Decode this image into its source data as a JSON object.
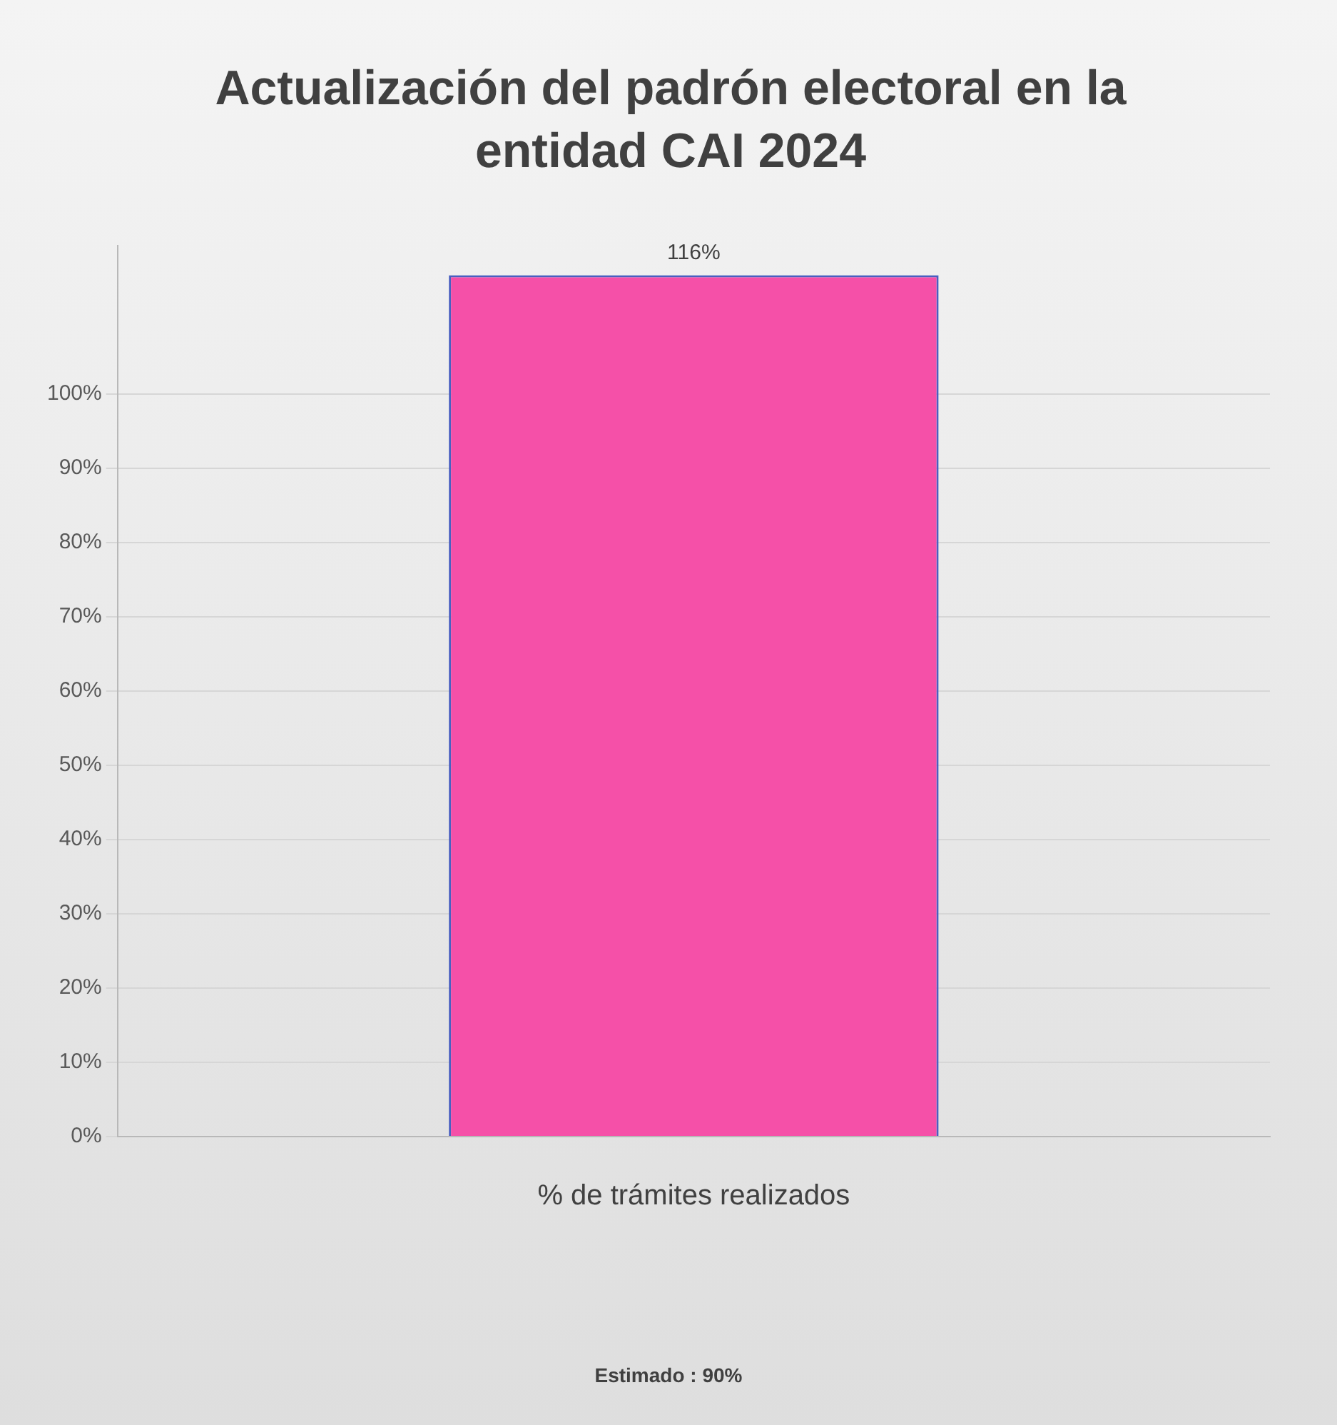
{
  "chart_data": {
    "type": "bar",
    "title": "Actualización del padrón electoral en la entidad CAI 2024",
    "categories": [
      "% de trámites realizados"
    ],
    "values": [
      116
    ],
    "color": "#f550a8",
    "ylim": [
      0,
      120
    ],
    "yticks": [
      {
        "value": 0,
        "label": "0%"
      },
      {
        "value": 10,
        "label": "10%"
      },
      {
        "value": 20,
        "label": "20%"
      },
      {
        "value": 30,
        "label": "30%"
      },
      {
        "value": 40,
        "label": "40%"
      },
      {
        "value": 50,
        "label": "50%"
      },
      {
        "value": 60,
        "label": "60%"
      },
      {
        "value": 70,
        "label": "70%"
      },
      {
        "value": 80,
        "label": "80%"
      },
      {
        "value": 90,
        "label": "90%"
      },
      {
        "value": 100,
        "label": "100%"
      }
    ],
    "value_labels": [
      "116%"
    ],
    "grid": "y",
    "legend": false,
    "annotations": [
      "Estimado : 90%"
    ]
  }
}
